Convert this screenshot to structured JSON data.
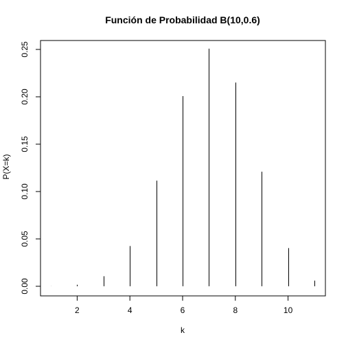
{
  "chart_data": {
    "type": "bar",
    "title": "Función de Probabilidad B(10,0.6)",
    "xlabel": "k",
    "ylabel": "P(X=k)",
    "x": [
      1,
      2,
      3,
      4,
      5,
      6,
      7,
      8,
      9,
      10,
      11
    ],
    "values": [
      0.0001,
      0.0016,
      0.0106,
      0.0425,
      0.1115,
      0.2007,
      0.2508,
      0.215,
      0.1209,
      0.0403,
      0.006
    ],
    "xlim": [
      1,
      11
    ],
    "ylim": [
      0,
      0.25
    ],
    "x_ticks": [
      2,
      4,
      6,
      8,
      10
    ],
    "x_tick_labels": [
      "2",
      "4",
      "6",
      "8",
      "10"
    ],
    "y_ticks": [
      0,
      0.05,
      0.1,
      0.15,
      0.2,
      0.25
    ],
    "y_tick_labels": [
      "0.00",
      "0.05",
      "0.10",
      "0.15",
      "0.20",
      "0.25"
    ],
    "grid": false,
    "legend": "none"
  }
}
